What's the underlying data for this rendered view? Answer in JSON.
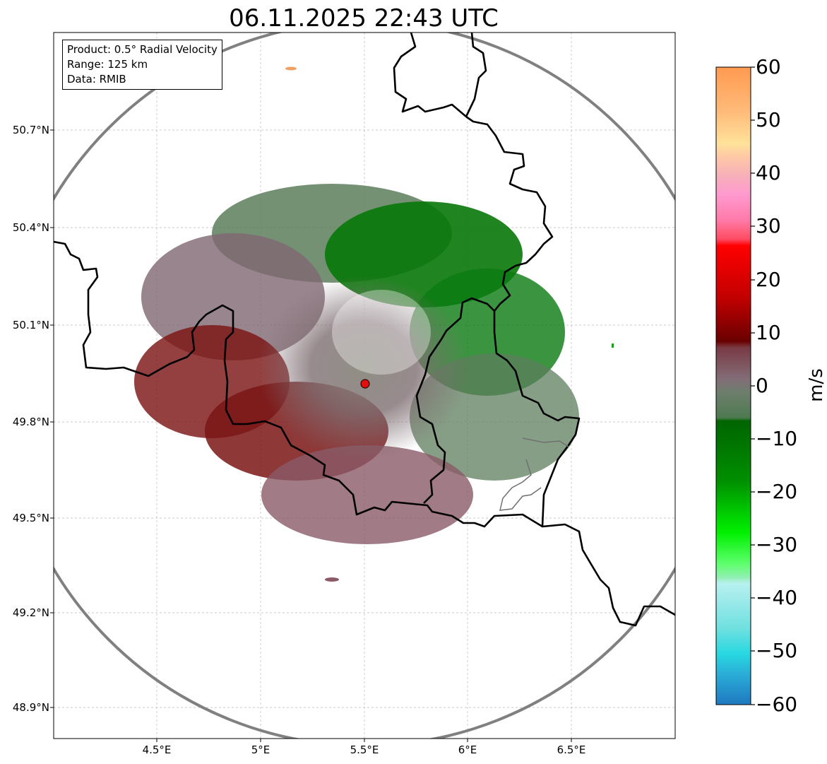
{
  "title": "06.11.2025 22:43 UTC",
  "info": {
    "product": "Product: 0.5° Radial Velocity",
    "range": "Range: 125 km",
    "source": "Data: RMIB"
  },
  "lat_labels": [
    "50.7°N",
    "50.4°N",
    "50.1°N",
    "49.8°N",
    "49.5°N",
    "49.2°N",
    "48.9°N"
  ],
  "lon_labels": [
    "4.5°E",
    "5°E",
    "5.5°E",
    "6°E",
    "6.5°E"
  ],
  "colorbar": {
    "unit": "m/s",
    "ticks": [
      "60",
      "50",
      "40",
      "30",
      "20",
      "10",
      "0",
      "−10",
      "−20",
      "−30",
      "−40",
      "−50",
      "−60"
    ],
    "min": -60,
    "max": 60
  },
  "radar_site": {
    "lon": 5.5,
    "lat": 49.91
  },
  "colors": {
    "border": "#000000",
    "range_ring": "#808080",
    "site": "#e01010"
  }
}
